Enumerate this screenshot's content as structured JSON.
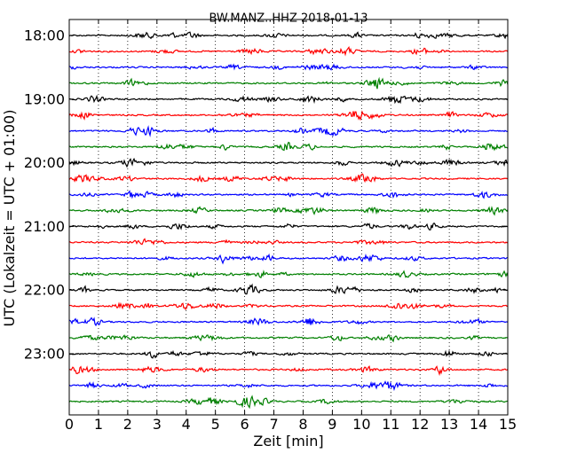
{
  "chart_data": {
    "type": "line",
    "title": "BW.MANZ..HHZ 2018-01-13",
    "xlabel": "Zeit  [min]",
    "ylabel": "UTC (Lokalzeit = UTC + 01:00)",
    "xlim": [
      0,
      15
    ],
    "x_ticks": [
      "0",
      "1",
      "2",
      "3",
      "4",
      "5",
      "6",
      "7",
      "8",
      "9",
      "10",
      "11",
      "12",
      "13",
      "14",
      "15"
    ],
    "y_ticks": [
      "18:00",
      "19:00",
      "20:00",
      "21:00",
      "22:00",
      "23:00"
    ],
    "grid": {
      "vertical_dotted": true
    },
    "trace_colors": [
      "#000000",
      "#ff0000",
      "#0000ff",
      "#008000"
    ],
    "traces": [
      {
        "start": "18:00",
        "color": "#000000"
      },
      {
        "start": "18:15",
        "color": "#ff0000"
      },
      {
        "start": "18:30",
        "color": "#0000ff"
      },
      {
        "start": "18:45",
        "color": "#008000"
      },
      {
        "start": "19:00",
        "color": "#000000"
      },
      {
        "start": "19:15",
        "color": "#ff0000"
      },
      {
        "start": "19:30",
        "color": "#0000ff"
      },
      {
        "start": "19:45",
        "color": "#008000"
      },
      {
        "start": "20:00",
        "color": "#000000"
      },
      {
        "start": "20:15",
        "color": "#ff0000"
      },
      {
        "start": "20:30",
        "color": "#0000ff"
      },
      {
        "start": "20:45",
        "color": "#008000"
      },
      {
        "start": "21:00",
        "color": "#000000"
      },
      {
        "start": "21:15",
        "color": "#ff0000"
      },
      {
        "start": "21:30",
        "color": "#0000ff"
      },
      {
        "start": "21:45",
        "color": "#008000"
      },
      {
        "start": "22:00",
        "color": "#000000"
      },
      {
        "start": "22:15",
        "color": "#ff0000"
      },
      {
        "start": "22:30",
        "color": "#0000ff"
      },
      {
        "start": "22:45",
        "color": "#008000"
      },
      {
        "start": "23:00",
        "color": "#000000"
      },
      {
        "start": "23:15",
        "color": "#ff0000"
      },
      {
        "start": "23:30",
        "color": "#0000ff"
      },
      {
        "start": "23:45",
        "color": "#008000"
      }
    ]
  }
}
